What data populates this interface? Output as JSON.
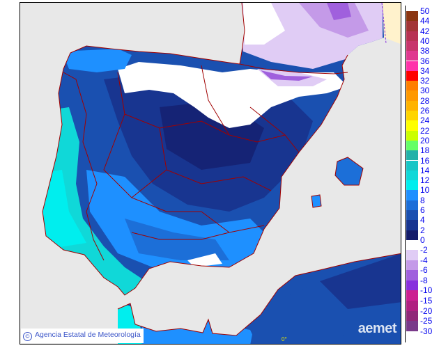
{
  "credit": {
    "symbol": "©",
    "text": "Agencia Estatal de Meteorología"
  },
  "watermark": "aemet",
  "longitude_label": "0°",
  "legend": {
    "positive": {
      "labels": [
        "50",
        "44",
        "42",
        "40",
        "38",
        "36",
        "34",
        "32",
        "30",
        "28",
        "26",
        "24",
        "22",
        "20",
        "18",
        "16",
        "14",
        "12",
        "10",
        "8",
        "6",
        "4",
        "2",
        "0"
      ],
      "colors": [
        "#8b3510",
        "#a33535",
        "#b83352",
        "#c8356b",
        "#e0388f",
        "#ff33aa",
        "#ff0000",
        "#ff7f00",
        "#ff9900",
        "#ffb300",
        "#ffd500",
        "#ffff00",
        "#ccff00",
        "#66ff66",
        "#22b2a8",
        "#18c6c6",
        "#10d8d8",
        "#00eeee",
        "#1e90ff",
        "#1c6fd8",
        "#1a50b0",
        "#183590",
        "#141c6a"
      ]
    },
    "negative": {
      "labels": [
        "-2",
        "-4",
        "-6",
        "-8",
        "-10",
        "-15",
        "-20",
        "-25",
        "-30"
      ],
      "colors": [
        "#e0ccf5",
        "#c49ae8",
        "#a060dd",
        "#8830dd",
        "#cc2090",
        "#b02080",
        "#902878",
        "#7a3a8a"
      ]
    }
  },
  "colors": {
    "sea": "#e8e8e8",
    "outside": "#fff2cc",
    "border": "#a00000"
  }
}
